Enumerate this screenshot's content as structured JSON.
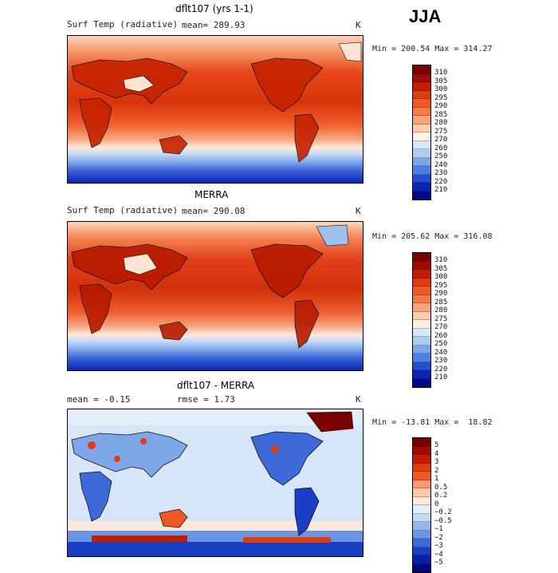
{
  "season": "JJA",
  "panels": [
    {
      "title": "dflt107 (yrs 1-1)",
      "variable": "Surf Temp (radiative)",
      "stat": "mean=  289.93",
      "units": "K",
      "minmax": "Min = 200.54 Max = 314.27",
      "colorbar_labels": [
        "310",
        "305",
        "300",
        "295",
        "290",
        "285",
        "280",
        "275",
        "270",
        "260",
        "250",
        "240",
        "230",
        "220",
        "210"
      ],
      "colors": [
        "#7a0000",
        "#9e0b00",
        "#c41c00",
        "#e03c0c",
        "#ef5a24",
        "#f47b48",
        "#f9a37a",
        "#fcccae",
        "#fff0e4",
        "#d8e8f8",
        "#aecdf2",
        "#7ea7ea",
        "#4f7fe0",
        "#2450d0",
        "#0a25b4",
        "#000a88"
      ]
    },
    {
      "title": "MERRA",
      "variable": "Surf Temp (radiative)",
      "stat": "mean=  290.08",
      "units": "K",
      "minmax": "Min = 205.62 Max = 316.08",
      "colorbar_labels": [
        "310",
        "305",
        "300",
        "295",
        "290",
        "285",
        "280",
        "275",
        "270",
        "260",
        "250",
        "240",
        "230",
        "220",
        "210"
      ],
      "colors": [
        "#7a0000",
        "#9e0b00",
        "#c41c00",
        "#e03c0c",
        "#ef5a24",
        "#f47b48",
        "#f9a37a",
        "#fcccae",
        "#fff0e4",
        "#d8e8f8",
        "#aecdf2",
        "#7ea7ea",
        "#4f7fe0",
        "#2450d0",
        "#0a25b4",
        "#000a88"
      ]
    },
    {
      "title": "dflt107 - MERRA",
      "stat_left": "mean =   -0.15",
      "stat_mid": "rmse =    1.73",
      "units": "K",
      "minmax": "Min = -13.81 Max =  18.82",
      "colorbar_labels": [
        "5",
        "4",
        "3",
        "2",
        "1",
        "0.5",
        "0.2",
        "0",
        "−0.2",
        "−0.5",
        "−1",
        "−2",
        "−3",
        "−4",
        "−5"
      ],
      "colors": [
        "#7a0000",
        "#9e0b00",
        "#c41c00",
        "#e03c0c",
        "#ef5a24",
        "#f79a70",
        "#fbc8a8",
        "#fde8dc",
        "#e4eefa",
        "#c3d8f4",
        "#95b6ec",
        "#6a94e4",
        "#3d6ad8",
        "#1a3fc4",
        "#081fa6",
        "#000a80"
      ]
    }
  ]
}
